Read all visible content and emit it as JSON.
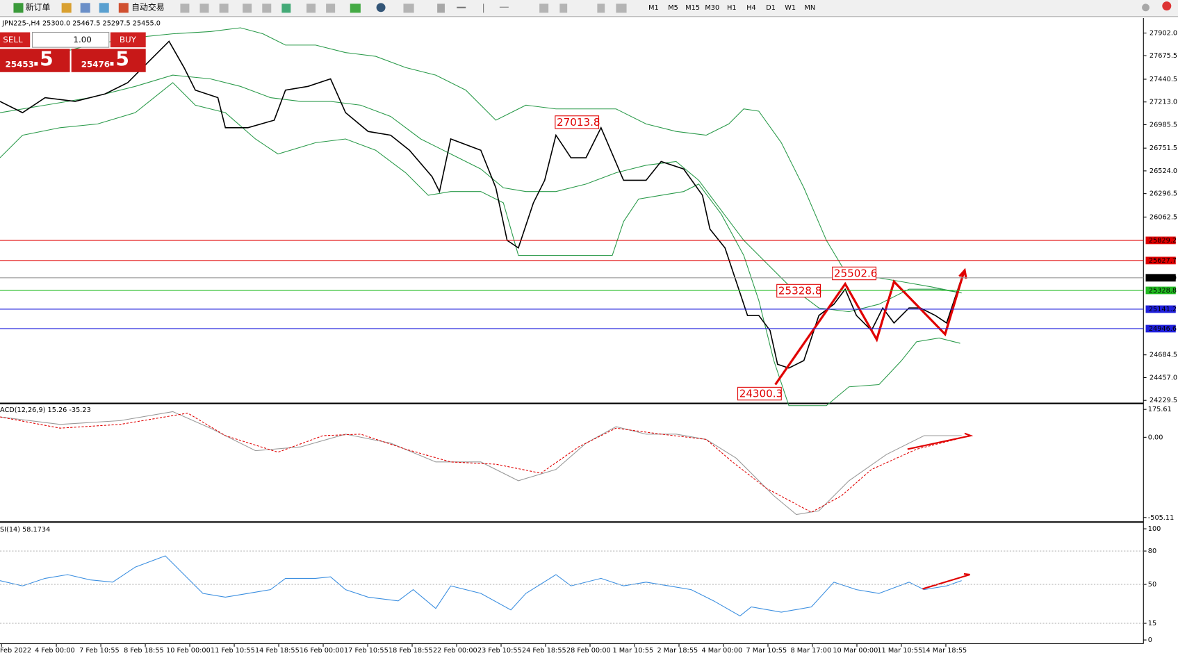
{
  "toolbar": {
    "new_order": "新订单",
    "auto_trading": "自动交易",
    "timeframes": [
      "M1",
      "M5",
      "M15",
      "M30",
      "H1",
      "H4",
      "D1",
      "W1",
      "MN"
    ]
  },
  "symbol_info": "JPN225-,H4  25300.0 25467.5 25297.5 25455.0",
  "trade_panel": {
    "sell": "SELL",
    "buy": "BUY",
    "lot": "1.00",
    "sell_price": "25453",
    "sell_tail": ".5",
    "buy_price": "25476",
    "buy_tail": ".5"
  },
  "price_panel": {
    "ylim": [
      24229.5,
      27902.0
    ],
    "ticks": [
      {
        "value": 27902,
        "label": "27902.0"
      },
      27675.5,
      27440.5,
      {
        "value": 27213,
        "label": "27213.0"
      },
      26985.5,
      26751.5,
      {
        "value": 26524,
        "label": "26524.0"
      },
      26296.5,
      26062.5,
      24684.5,
      {
        "value": 24457,
        "label": "24457.0"
      },
      24229.5
    ],
    "levels": [
      {
        "value": 25829.2,
        "color": "#e00000"
      },
      {
        "value": 25627.7,
        "color": "#e00000"
      },
      {
        "value": 25455,
        "label": "25455.0",
        "color": "#000000"
      },
      {
        "value": 25328.8,
        "color": "#22bb22"
      },
      {
        "value": 25141.2,
        "color": "#2020dd"
      },
      {
        "value": 24946.6,
        "color": "#2020dd"
      }
    ],
    "annotations": [
      27013.8,
      25502.6,
      25328.8,
      24300.3
    ]
  },
  "macd_panel": {
    "label": "ACD(12,26,9) 15.26 -35.23",
    "ylim": [
      -505.11,
      175.61
    ],
    "ticks": [
      175.61,
      {
        "value": 0,
        "label": "0.00"
      },
      -505.11
    ]
  },
  "rsi_panel": {
    "label": "SI(14) 58.1734",
    "ylim": [
      0,
      100
    ],
    "ticks": [
      100,
      80,
      50,
      15,
      0
    ]
  },
  "dates": [
    "Feb 2022",
    "4 Feb 00:00",
    "7 Feb 10:55",
    "8 Feb 18:55",
    "10 Feb 00:00",
    "11 Feb 10:55",
    "14 Feb 18:55",
    "16 Feb 00:00",
    "17 Feb 10:55",
    "18 Feb 18:55",
    "22 Feb 00:00",
    "23 Feb 10:55",
    "24 Feb 18:55",
    "28 Feb 00:00",
    "1 Mar 10:55",
    "2 Mar 18:55",
    "4 Mar 00:00",
    "7 Mar 10:55",
    "8 Mar 17:00",
    "10 Mar 00:00",
    "11 Mar 10:55",
    "14 Mar 18:55"
  ]
}
